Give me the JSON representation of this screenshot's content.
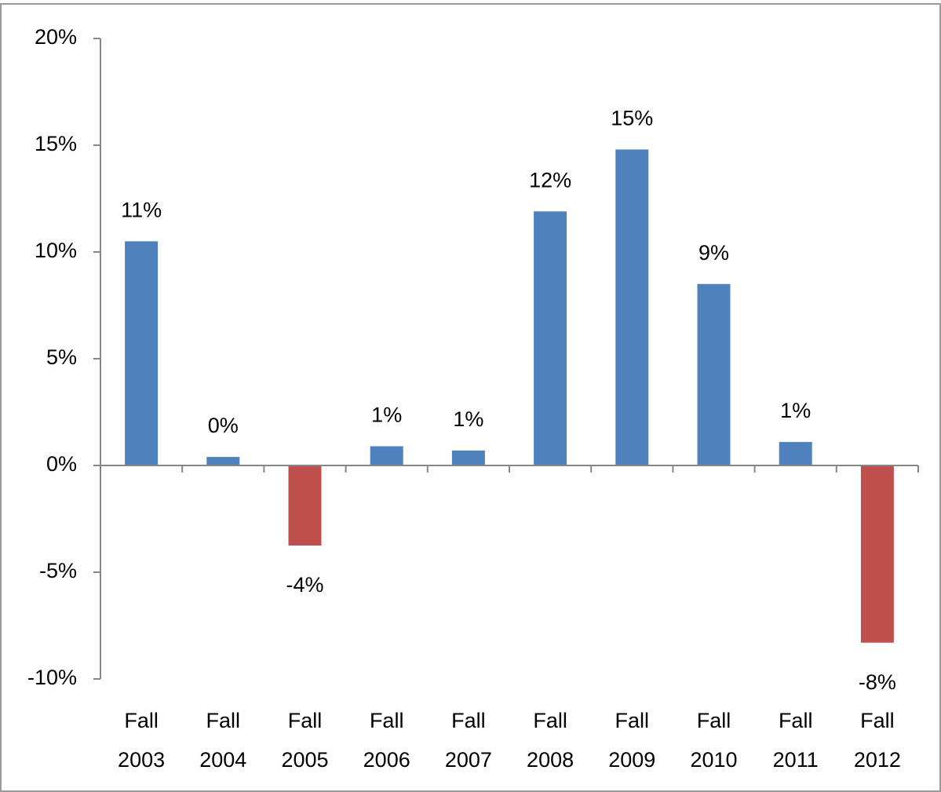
{
  "chart_data": {
    "type": "bar",
    "categories": [
      "Fall 2003",
      "Fall 2004",
      "Fall 2005",
      "Fall 2006",
      "Fall 2007",
      "Fall 2008",
      "Fall 2009",
      "Fall 2010",
      "Fall 2011",
      "Fall 2012"
    ],
    "values": [
      10.5,
      0.4,
      -3.75,
      0.9,
      0.7,
      11.9,
      14.8,
      8.5,
      1.1,
      -8.3
    ],
    "value_labels": [
      "11%",
      "0%",
      "-4%",
      "1%",
      "1%",
      "12%",
      "15%",
      "9%",
      "1%",
      "-8%"
    ],
    "colors": [
      "#4f81bd",
      "#4f81bd",
      "#c0504d",
      "#4f81bd",
      "#4f81bd",
      "#4f81bd",
      "#4f81bd",
      "#4f81bd",
      "#4f81bd",
      "#c0504d"
    ],
    "ylim": [
      -10,
      20
    ],
    "yticks": [
      {
        "value": -10,
        "label": "-10%"
      },
      {
        "value": -5,
        "label": "-5%"
      },
      {
        "value": 0,
        "label": "0%"
      },
      {
        "value": 5,
        "label": "5%"
      },
      {
        "value": 10,
        "label": "10%"
      },
      {
        "value": 15,
        "label": "15%"
      },
      {
        "value": 20,
        "label": "20%"
      }
    ],
    "grid": false
  }
}
